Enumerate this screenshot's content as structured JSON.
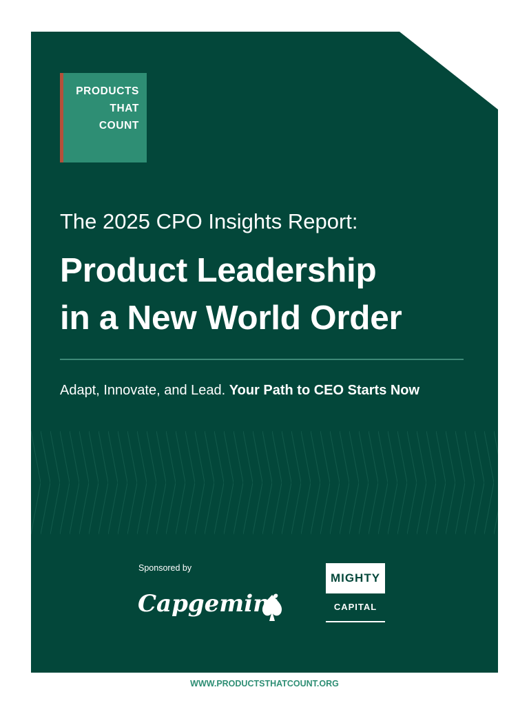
{
  "logo": {
    "lines": [
      "PRODUCTS",
      "THAT",
      "COUNT"
    ]
  },
  "report": {
    "pre_title": "The 2025 CPO Insights Report:",
    "title_lines": [
      "Product Leadership",
      "in a New World Order"
    ],
    "tagline_plain": "Adapt, Innovate, and Lead. ",
    "tagline_bold": "Your Path to CEO Starts Now"
  },
  "sponsors": {
    "label": "Sponsored by",
    "capgemini": "Capgemini",
    "mighty_top": "MIGHTY",
    "mighty_bottom": "CAPITAL"
  },
  "footer": {
    "url": "WWW.PRODUCTSTHATCOUNT.ORG"
  },
  "colors": {
    "background": "#03473a",
    "logo_bg": "#2e8e74",
    "logo_accent": "#b5503a",
    "rule": "#3f8a78"
  }
}
